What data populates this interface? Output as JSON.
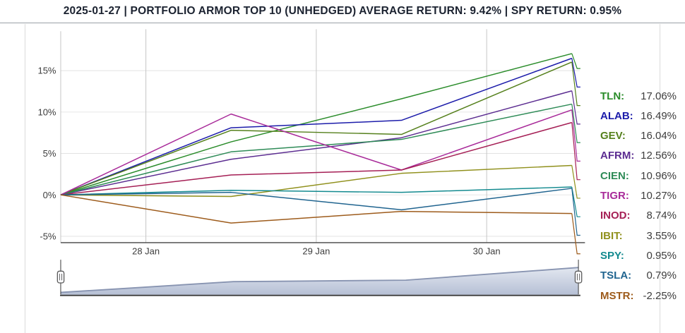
{
  "chart_data": {
    "type": "line",
    "title": "2025-01-27 | PORTFOLIO ARMOR TOP 10 (UNHEDGED) AVERAGE RETURN: 9.42% | SPY RETURN: 0.95%",
    "average_return": "9.42%",
    "spy_return": "0.95%",
    "x": [
      0,
      1,
      2,
      3
    ],
    "x_tick_labels": [
      "28 Jan",
      "29 Jan",
      "30 Jan"
    ],
    "x_tick_positions": [
      0.5,
      1.5,
      2.5
    ],
    "y_ticks": [
      {
        "label": "15%",
        "value": 15
      },
      {
        "label": "10%",
        "value": 10
      },
      {
        "label": "5%",
        "value": 5
      },
      {
        "label": "0%",
        "value": 0
      },
      {
        "label": "-5%",
        "value": -5
      }
    ],
    "ylim": [
      -5.8,
      20.0
    ],
    "grid": true,
    "legend_position": "right",
    "series": [
      {
        "name": "TLN",
        "label": "TLN:",
        "color": "#2a8c2a",
        "values": [
          0,
          6.4,
          11.6,
          17.06
        ],
        "final_label": "17.06%"
      },
      {
        "name": "ALAB",
        "label": "ALAB:",
        "color": "#1c1caa",
        "values": [
          0,
          8.1,
          9.0,
          16.49
        ],
        "final_label": "16.49%"
      },
      {
        "name": "GEV",
        "label": "GEV:",
        "color": "#55801c",
        "values": [
          0,
          7.8,
          7.3,
          16.04
        ],
        "final_label": "16.04%"
      },
      {
        "name": "AFRM",
        "label": "AFRM:",
        "color": "#5c2d91",
        "values": [
          0,
          4.3,
          6.9,
          12.56
        ],
        "final_label": "12.56%"
      },
      {
        "name": "CIEN",
        "label": "CIEN:",
        "color": "#2e8b57",
        "values": [
          0,
          5.2,
          6.7,
          10.96
        ],
        "final_label": "10.96%"
      },
      {
        "name": "TIGR",
        "label": "TIGR:",
        "color": "#a82a99",
        "values": [
          0,
          9.76,
          3.0,
          10.27
        ],
        "final_label": "10.27%"
      },
      {
        "name": "INOD",
        "label": "INOD:",
        "color": "#a51f55",
        "values": [
          0,
          2.4,
          3.0,
          8.74
        ],
        "final_label": "8.74%"
      },
      {
        "name": "IBIT",
        "label": "IBIT:",
        "color": "#90901c",
        "values": [
          0,
          -0.2,
          2.6,
          3.55
        ],
        "final_label": "3.55%"
      },
      {
        "name": "SPY",
        "label": "SPY:",
        "color": "#138a8f",
        "values": [
          0,
          0.55,
          0.3,
          0.95
        ],
        "final_label": "0.95%"
      },
      {
        "name": "TSLA",
        "label": "TSLA:",
        "color": "#20648f",
        "values": [
          0,
          0.3,
          -1.8,
          0.79
        ],
        "final_label": "0.79%"
      },
      {
        "name": "MSTR",
        "label": "MSTR:",
        "color": "#9d5b1b",
        "values": [
          0,
          -3.4,
          -2.0,
          -2.25
        ],
        "final_label": "-2.25%"
      }
    ]
  },
  "rangeslider": {
    "avg_series": [
      0,
      4.07,
      4.63,
      9.42
    ]
  },
  "ui_colors": {
    "title_text": "#1b2230",
    "title_border": "#9aa0a6",
    "grid_horizontal": "#e3e3e3",
    "grid_vertical": "#c2c2c2",
    "axis_left": "#c2c2c2",
    "axis_bottom": "#444444",
    "tick_text": "#3c3c3c",
    "legend_value_text": "#3d3d3d",
    "side_border": "#d8d8d8",
    "slider_fill_top": "#e2e7f0",
    "slider_fill_bottom": "#b6c0d5",
    "slider_top_line": "#8894b1",
    "slider_bottom_line": "#3a3a3a",
    "slider_stem": "#2a2a2a",
    "handle_fill": "#fbfbfd",
    "handle_border": "#5a5a5a"
  }
}
